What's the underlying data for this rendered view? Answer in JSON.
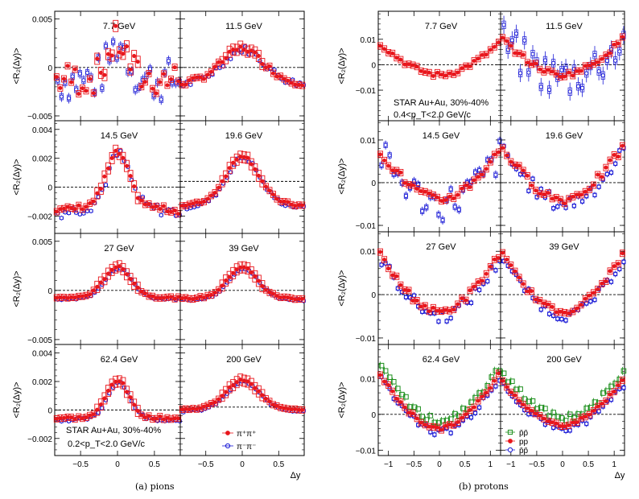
{
  "captions": {
    "left": "(a) pions",
    "right": "(b) protons"
  },
  "colors": {
    "red": "#e8161c",
    "blue": "#1a1ad6",
    "green": "#1d8f1d",
    "axis": "#000000"
  },
  "chart_data": [
    {
      "type": "scatter",
      "ylabel": "<R₂(Δy)>",
      "xlabel": "Δy",
      "xlim": [
        -0.85,
        0.85
      ],
      "xticks": [
        -0.5,
        0,
        0.5
      ],
      "xtick_labels": [
        "−0.5",
        "0",
        "0.5"
      ],
      "annotation": {
        "line1": "STAR Au+Au, 30%-40%",
        "line2": "0.2<p_T<2.0 GeV/c",
        "panel": "62.4 GeV"
      },
      "legend": [
        {
          "label": "π⁺π⁺",
          "color": "#e8161c",
          "marker": "filled-circle"
        },
        {
          "label": "π⁻π⁻",
          "color": "#1a1ad6",
          "marker": "open-circle"
        }
      ],
      "rows": [
        {
          "ylim": [
            -0.0055,
            0.0058
          ],
          "yticks": [
            -0.005,
            0,
            0.005
          ],
          "ytick_labels": [
            "−0.005",
            "0",
            "0.005"
          ]
        },
        {
          "ylim": [
            -0.0032,
            0.0046
          ],
          "yticks": [
            -0.002,
            0,
            0.002,
            0.004
          ],
          "ytick_labels": [
            "−0.002",
            "0",
            "0.002",
            "0.004"
          ]
        },
        {
          "ylim": [
            -0.0055,
            0.0058
          ],
          "yticks": [
            -0.005,
            0,
            0.005
          ],
          "ytick_labels": [
            "−0.005",
            "0",
            "0.005"
          ]
        },
        {
          "ylim": [
            -0.0032,
            0.0046
          ],
          "yticks": [
            -0.002,
            0,
            0.002,
            0.004
          ],
          "ytick_labels": [
            "−0.002",
            "0",
            "0.002",
            "0.004"
          ]
        }
      ],
      "panels": [
        {
          "energy": "7.7 GeV",
          "row": 0,
          "col": 0,
          "ref_level": 0,
          "amp": 0.0038,
          "width": 0.13,
          "base": -0.0012,
          "edge_slope": 0,
          "blue_scatter": 0.0022,
          "red_scatter": 0.0018
        },
        {
          "energy": "11.5 GeV",
          "row": 0,
          "col": 1,
          "ref_level": 0,
          "amp": 0.003,
          "width": 0.28,
          "base": -0.001,
          "edge_slope": -0.0008,
          "blue_scatter": 0.0004,
          "red_scatter": 0.0003
        },
        {
          "energy": "14.5 GeV",
          "row": 1,
          "col": 0,
          "ref_level": 0,
          "amp": 0.0034,
          "width": 0.15,
          "base": -0.001,
          "edge_slope": -0.0008,
          "blue_scatter": 0.0004,
          "red_scatter": 0.0002
        },
        {
          "energy": "19.6 GeV",
          "row": 1,
          "col": 1,
          "ref_level": 0.0004,
          "amp": 0.003,
          "width": 0.22,
          "base": -0.0008,
          "edge_slope": -0.0006,
          "blue_scatter": 0.00015,
          "red_scatter": 0.0001
        },
        {
          "energy": "27 GeV",
          "row": 2,
          "col": 0,
          "ref_level": 0,
          "amp": 0.003,
          "width": 0.18,
          "base": -0.0006,
          "edge_slope": -0.0002,
          "blue_scatter": 0.0001,
          "red_scatter": 0.0001
        },
        {
          "energy": "39 GeV",
          "row": 2,
          "col": 1,
          "ref_level": 0,
          "amp": 0.003,
          "width": 0.2,
          "base": -0.0006,
          "edge_slope": -0.0003,
          "blue_scatter": 0.0001,
          "red_scatter": 0.0001
        },
        {
          "energy": "62.4 GeV",
          "row": 3,
          "col": 0,
          "ref_level": 0,
          "amp": 0.0026,
          "width": 0.15,
          "base": -0.0005,
          "edge_slope": -0.0001,
          "blue_scatter": 0.0001,
          "red_scatter": 0.0001
        },
        {
          "energy": "200 GeV",
          "row": 3,
          "col": 1,
          "ref_level": 0.0002,
          "amp": 0.0019,
          "width": 0.22,
          "base": 0.0002,
          "edge_slope": -0.0002,
          "blue_scatter": 8e-05,
          "red_scatter": 5e-05
        }
      ]
    },
    {
      "type": "scatter",
      "ylabel": "<R₂(Δy)>",
      "xlabel": "Δy",
      "xlim": [
        -1.2,
        1.2
      ],
      "xticks": [
        -1,
        -0.5,
        0,
        0.5,
        1
      ],
      "xtick_labels": [
        "−1",
        "−0.5",
        "0",
        "0.5",
        "1"
      ],
      "annotation": {
        "line1": "STAR Au+Au, 30%-40%",
        "line2": "0.4<p_T<2.0 GeV/c",
        "panel": "7.7 GeV"
      },
      "legend": [
        {
          "label": "p̄p̄",
          "color": "#1d8f1d",
          "marker": "open-square"
        },
        {
          "label": "pp",
          "color": "#e8161c",
          "marker": "filled-circle"
        },
        {
          "label": "p̄p̄",
          "color": "#1a1ad6",
          "marker": "open-circle"
        }
      ],
      "rows": [
        {
          "ylim": [
            -0.022,
            0.021
          ],
          "yticks": [
            -0.01,
            0,
            0.01
          ],
          "ytick_labels": [
            "−0.01",
            "0",
            "0.01"
          ]
        },
        {
          "ylim": [
            -0.0115,
            0.0145
          ],
          "yticks": [
            -0.01,
            0,
            0.01
          ],
          "ytick_labels": [
            "−0.01",
            "0",
            "0.01"
          ]
        },
        {
          "ylim": [
            -0.0115,
            0.0145
          ],
          "yticks": [
            -0.01,
            0,
            0.01
          ],
          "ytick_labels": [
            "−0.01",
            "0",
            "0.01"
          ]
        },
        {
          "ylim": [
            -0.0115,
            0.0195
          ],
          "yticks": [
            -0.01,
            0,
            0.01
          ],
          "ytick_labels": [
            "−0.01",
            "0",
            "0.01"
          ]
        }
      ],
      "panels": [
        {
          "energy": "7.7 GeV",
          "row": 0,
          "col": 0,
          "ref_level": 0,
          "dip": -0.004,
          "edge": 0.009,
          "blue_scatter": 0.0,
          "red_scatter": 0.001,
          "has_blue": false,
          "has_green": false
        },
        {
          "energy": "11.5 GeV",
          "row": 0,
          "col": 1,
          "ref_level": 0,
          "dip": -0.004,
          "edge": 0.011,
          "blue_scatter": 0.008,
          "red_scatter": 0.001,
          "has_blue": true,
          "has_green": false
        },
        {
          "energy": "14.5 GeV",
          "row": 1,
          "col": 0,
          "ref_level": 0,
          "dip": -0.004,
          "edge": 0.008,
          "blue_scatter": 0.004,
          "red_scatter": 0.001,
          "has_blue": true,
          "has_green": false
        },
        {
          "energy": "19.6 GeV",
          "row": 1,
          "col": 1,
          "ref_level": 0,
          "dip": -0.004,
          "edge": 0.009,
          "blue_scatter": 0.002,
          "red_scatter": 0.001,
          "has_blue": true,
          "has_green": false
        },
        {
          "energy": "27 GeV",
          "row": 2,
          "col": 0,
          "ref_level": 0,
          "dip": -0.004,
          "edge": 0.01,
          "blue_scatter": 0.0015,
          "red_scatter": 0.0008,
          "has_blue": true,
          "has_green": false
        },
        {
          "energy": "39 GeV",
          "row": 2,
          "col": 1,
          "ref_level": 0,
          "dip": -0.004,
          "edge": 0.01,
          "blue_scatter": 0.001,
          "red_scatter": 0.0006,
          "has_blue": true,
          "has_green": false
        },
        {
          "energy": "62.4 GeV",
          "row": 3,
          "col": 0,
          "ref_level": 0,
          "dip": -0.004,
          "edge": 0.012,
          "blue_scatter": 0.001,
          "red_scatter": 0.0005,
          "has_blue": true,
          "has_green": true
        },
        {
          "energy": "200 GeV",
          "row": 3,
          "col": 1,
          "ref_level": 0,
          "dip": -0.003,
          "edge": 0.01,
          "blue_scatter": 0.001,
          "red_scatter": 0.0004,
          "has_blue": true,
          "has_green": true
        }
      ]
    }
  ]
}
